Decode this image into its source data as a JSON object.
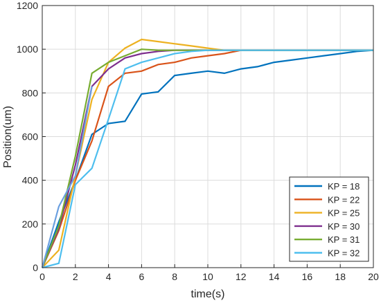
{
  "chart_data": {
    "type": "line",
    "title": "",
    "xlabel": "time(s)",
    "ylabel": "Position(um)",
    "xlim": [
      0,
      20
    ],
    "ylim": [
      0,
      1200
    ],
    "xticks": [
      "0",
      "2",
      "4",
      "6",
      "8",
      "10",
      "12",
      "14",
      "16",
      "18",
      "20"
    ],
    "yticks": [
      "0",
      "200",
      "400",
      "600",
      "800",
      "1000",
      "1200"
    ],
    "grid": true,
    "legend_position": "bottom-right",
    "series": [
      {
        "name": "KP = 18",
        "color": "#0072BD",
        "x": [
          0,
          1,
          2,
          3,
          4,
          5,
          6,
          7,
          8,
          9,
          10,
          11,
          12,
          13,
          14,
          15,
          16,
          17,
          18,
          19,
          20
        ],
        "y": [
          0,
          210,
          400,
          610,
          660,
          670,
          795,
          805,
          880,
          890,
          900,
          890,
          910,
          920,
          940,
          950,
          960,
          970,
          980,
          990,
          995
        ]
      },
      {
        "name": "KP = 22",
        "color": "#D95319",
        "x": [
          0,
          1,
          2,
          3,
          4,
          5,
          6,
          7,
          8,
          9,
          10,
          11,
          12,
          13,
          14,
          15,
          16,
          17,
          18,
          19,
          20
        ],
        "y": [
          0,
          170,
          400,
          580,
          830,
          890,
          900,
          930,
          940,
          960,
          970,
          980,
          995,
          995,
          995,
          995,
          995,
          995,
          995,
          995,
          995
        ]
      },
      {
        "name": "KP = 25",
        "color": "#EDB120",
        "x": [
          0,
          1,
          2,
          3,
          4,
          5,
          6,
          7,
          8,
          9,
          10,
          11,
          12,
          13,
          14,
          15,
          16,
          17,
          18,
          19,
          20
        ],
        "y": [
          0,
          80,
          420,
          770,
          940,
          1005,
          1045,
          1035,
          1025,
          1015,
          1005,
          995,
          995,
          995,
          995,
          995,
          995,
          995,
          995,
          995,
          995
        ]
      },
      {
        "name": "KP = 30",
        "color": "#7E2F8E",
        "x": [
          0,
          1,
          2,
          3,
          4,
          5,
          6,
          7,
          8,
          9,
          10,
          11,
          12,
          13,
          14,
          15,
          16,
          17,
          18,
          19,
          20
        ],
        "y": [
          0,
          180,
          470,
          830,
          910,
          960,
          980,
          990,
          995,
          995,
          995,
          995,
          995,
          995,
          995,
          995,
          995,
          995,
          995,
          995,
          995
        ]
      },
      {
        "name": "KP = 31",
        "color": "#77AC30",
        "x": [
          0,
          1,
          2,
          3,
          4,
          5,
          6,
          7,
          8,
          9,
          10,
          11,
          12,
          13,
          14,
          15,
          16,
          17,
          18,
          19,
          20
        ],
        "y": [
          0,
          190,
          510,
          890,
          940,
          970,
          1000,
          995,
          995,
          995,
          995,
          995,
          995,
          995,
          995,
          995,
          995,
          995,
          995,
          995,
          995
        ]
      },
      {
        "name": "KP = 32",
        "color": "#4DBEEE",
        "x": [
          0,
          1,
          2,
          3,
          4,
          5,
          6,
          7,
          8,
          9,
          10,
          11,
          12,
          13,
          14,
          15,
          16,
          17,
          18,
          19,
          20
        ],
        "y": [
          0,
          20,
          380,
          455,
          680,
          910,
          940,
          960,
          980,
          990,
          995,
          995,
          995,
          995,
          995,
          995,
          995,
          995,
          995,
          995,
          995
        ]
      },
      {
        "name": "KP = 32",
        "color": "#6A9FE0",
        "x": [
          0,
          1,
          2,
          3
        ],
        "y": [
          0,
          280,
          420,
          830
        ]
      }
    ]
  }
}
